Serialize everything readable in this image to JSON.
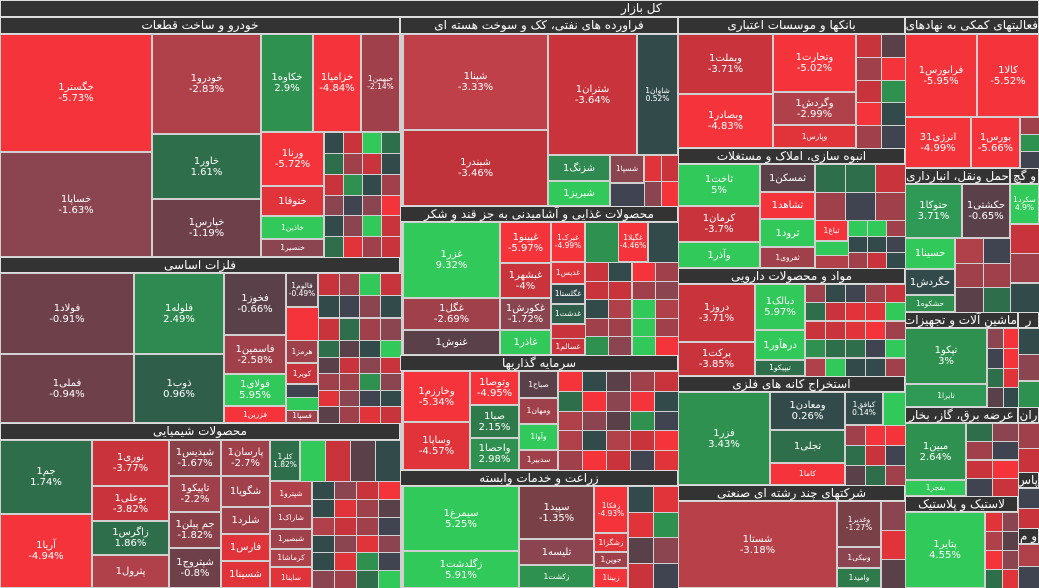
{
  "title": "کل بازار",
  "colors": {
    "bright_red": "#f5333a",
    "red": "#c8333c",
    "mid_red": "#b0404a",
    "maroon": "#8a4550",
    "plum": "#6e404a",
    "dark_plum": "#5a4048",
    "slate": "#3f4450",
    "teal": "#334a4a",
    "dark_green": "#2f6e4a",
    "green": "#2e9150",
    "bright_green": "#30c95a",
    "header": "#333333"
  },
  "sections": [
    {
      "title": "خودرو و ساخت قطعات",
      "tiles": [
        {
          "symbol": "خگستر1",
          "change": "-5.73%",
          "color": "#f5333a"
        },
        {
          "symbol": "خساپا1",
          "change": "-1.63%",
          "color": "#8a4550"
        },
        {
          "symbol": "خودرو1",
          "change": "-2.83%",
          "color": "#b0404a"
        },
        {
          "symbol": "خاور1",
          "change": "1.61%",
          "color": "#2f6e4a"
        },
        {
          "symbol": "خپارس1",
          "change": "-1.19%",
          "color": "#6e404a"
        },
        {
          "symbol": "خکاوه1",
          "change": "2.9%",
          "color": "#2e9150"
        },
        {
          "symbol": "خزامیا1",
          "change": "-4.84%",
          "color": "#f5333a"
        },
        {
          "symbol": "خبهمن1",
          "change": "-2.14%",
          "color": "#a0404a"
        },
        {
          "symbol": "ورنا1",
          "change": "-5.72%",
          "color": "#f5333a"
        },
        {
          "symbol": "ختوقا1",
          "change": "",
          "color": "#e0333a"
        },
        {
          "symbol": "خاذین1",
          "change": "",
          "color": "#30c95a"
        },
        {
          "symbol": "خنصیر1",
          "change": "",
          "color": "#8a4550"
        }
      ]
    },
    {
      "title": "فلزات اساسی",
      "tiles": [
        {
          "symbol": "فولاد1",
          "change": "-0.91%",
          "color": "#6e404a"
        },
        {
          "symbol": "فملی1",
          "change": "-0.94%",
          "color": "#6e404a"
        },
        {
          "symbol": "فلوله1",
          "change": "2.49%",
          "color": "#2e8a50"
        },
        {
          "symbol": "ذوب1",
          "change": "0.96%",
          "color": "#2f5e4a"
        },
        {
          "symbol": "فخوز1",
          "change": "-0.66%",
          "color": "#5a4048"
        },
        {
          "symbol": "فاسمین1",
          "change": "-2.58%",
          "color": "#a0404a"
        },
        {
          "symbol": "فولای1",
          "change": "5.95%",
          "color": "#30c95a"
        },
        {
          "symbol": "فزرین1",
          "change": "",
          "color": "#f5333a"
        },
        {
          "symbol": "فالوم1",
          "change": "-0.49%",
          "color": "#5a4048"
        },
        {
          "symbol": "هرمز1",
          "change": "",
          "color": "#a0404a"
        },
        {
          "symbol": "کویر1",
          "change": "",
          "color": "#c8333c"
        },
        {
          "symbol": "فسپا1",
          "change": "",
          "color": "#a0404a"
        }
      ]
    },
    {
      "title": "محصولات شیمیایی",
      "tiles": [
        {
          "symbol": "جم1",
          "change": "1.74%",
          "color": "#2f6e4a"
        },
        {
          "symbol": "آریا1",
          "change": "-4.94%",
          "color": "#f5333a"
        },
        {
          "symbol": "نوری1",
          "change": "-3.77%",
          "color": "#c8333c"
        },
        {
          "symbol": "بوعلی1",
          "change": "-3.82%",
          "color": "#c8333c"
        },
        {
          "symbol": "زاگرس1",
          "change": "1.86%",
          "color": "#2f6e4a"
        },
        {
          "symbol": "پترول1",
          "change": "",
          "color": "#b0404a"
        },
        {
          "symbol": "شپدیس1",
          "change": "-1.67%",
          "color": "#8a4048"
        },
        {
          "symbol": "تاپیکو1",
          "change": "-2.2%",
          "color": "#a0404a"
        },
        {
          "symbol": "جم پیلن1",
          "change": "-1.82%",
          "color": "#8a4048"
        },
        {
          "symbol": "شپتروج1",
          "change": "-0.8%",
          "color": "#6e404a"
        },
        {
          "symbol": "پارسان1",
          "change": "-2.7%",
          "color": "#a0404a"
        },
        {
          "symbol": "شگویا1",
          "change": "",
          "color": "#a0404a"
        },
        {
          "symbol": "شلرد1",
          "change": "",
          "color": "#a0404a"
        },
        {
          "symbol": "فارس1",
          "change": "",
          "color": "#e0333a"
        },
        {
          "symbol": "شسینا1",
          "change": "",
          "color": "#e0333a"
        },
        {
          "symbol": "کلر1",
          "change": "1.82%",
          "color": "#2f6e4a"
        },
        {
          "symbol": "شپترو1",
          "change": "",
          "color": "#b0404a"
        },
        {
          "symbol": "شاراک1",
          "change": "",
          "color": "#a0404a"
        },
        {
          "symbol": "شبصیر1",
          "change": "",
          "color": "#a0404a"
        },
        {
          "symbol": "کرماشا1",
          "change": "",
          "color": "#b0404a"
        },
        {
          "symbol": "ساینا1",
          "change": "",
          "color": "#e0333a"
        }
      ]
    },
    {
      "title": "فراورده های نفتی، کک و سوخت هسته ای",
      "tiles": [
        {
          "symbol": "شپنا1",
          "change": "-3.33%",
          "color": "#c0404a"
        },
        {
          "symbol": "شبندر1",
          "change": "-3.46%",
          "color": "#c0333a"
        },
        {
          "symbol": "شتران1",
          "change": "-3.64%",
          "color": "#c8333c"
        },
        {
          "symbol": "شاوان1",
          "change": "0.52%",
          "color": "#334a4a"
        },
        {
          "symbol": "شزنگ1",
          "change": "",
          "color": "#2e8a50"
        },
        {
          "symbol": "شبریز1",
          "change": "",
          "color": "#30c95a"
        },
        {
          "symbol": "شسپا1",
          "change": "",
          "color": "#8a4550"
        }
      ]
    },
    {
      "title": "محصولات غذایی و آشامیدنی به جز قند و شکر",
      "tiles": [
        {
          "symbol": "غزر1",
          "change": "9.32%",
          "color": "#30c95a"
        },
        {
          "symbol": "غگل1",
          "change": "-2.69%",
          "color": "#a0404a"
        },
        {
          "symbol": "غنوش1",
          "change": "",
          "color": "#5a4048"
        },
        {
          "symbol": "غپینو1",
          "change": "-5.97%",
          "color": "#f5333a"
        },
        {
          "symbol": "غبشهر1",
          "change": "-4%",
          "color": "#c8333c"
        },
        {
          "symbol": "غکورش1",
          "change": "-1.72%",
          "color": "#8a4550"
        },
        {
          "symbol": "غاذر1",
          "change": "",
          "color": "#30c95a"
        },
        {
          "symbol": "غبرک1",
          "change": "-4.99%",
          "color": "#f5333a"
        },
        {
          "symbol": "غدیس1",
          "change": "",
          "color": "#e0333a"
        },
        {
          "symbol": "غگلستا1",
          "change": "",
          "color": "#334a4a"
        },
        {
          "symbol": "غدشت1",
          "change": "",
          "color": "#2f5e4a"
        },
        {
          "symbol": "غسالم1",
          "change": "",
          "color": "#c8333c"
        },
        {
          "symbol": "غگیلا1",
          "change": "-4.46%",
          "color": "#f5333a"
        }
      ]
    },
    {
      "title": "سرمایه گذاریها",
      "tiles": [
        {
          "symbol": "وخارزم1",
          "change": "-5.34%",
          "color": "#f5333a"
        },
        {
          "symbol": "وساپا1",
          "change": "-4.57%",
          "color": "#e0333a"
        },
        {
          "symbol": "وتوصا1",
          "change": "-4.95%",
          "color": "#f5333a"
        },
        {
          "symbol": "صبا1",
          "change": "2.15%",
          "color": "#2f7a4a"
        },
        {
          "symbol": "واحصا1",
          "change": "2.98%",
          "color": "#2e9150"
        },
        {
          "symbol": "صباح1",
          "change": "",
          "color": "#5a4048"
        },
        {
          "symbol": "ومهان1",
          "change": "",
          "color": "#a0404a"
        },
        {
          "symbol": "وآوا1",
          "change": "",
          "color": "#30c95a"
        },
        {
          "symbol": "سدبیر1",
          "change": "",
          "color": "#a0404a"
        }
      ]
    },
    {
      "title": "زراعت و خدمات وابسته",
      "tiles": [
        {
          "symbol": "سیمرغ1",
          "change": "5.25%",
          "color": "#30c95a"
        },
        {
          "symbol": "زگلدشت1",
          "change": "5.91%",
          "color": "#30c95a"
        },
        {
          "symbol": "سپید1",
          "change": "-1.35%",
          "color": "#7a4048"
        },
        {
          "symbol": "تلیسه1",
          "change": "",
          "color": "#8a4550"
        },
        {
          "symbol": "زکشت1",
          "change": "",
          "color": "#2e9150"
        },
        {
          "symbol": "زفکا1",
          "change": "-4.93%",
          "color": "#f5333a"
        },
        {
          "symbol": "زشگزا1",
          "change": "",
          "color": "#e0333a"
        },
        {
          "symbol": "جوین1",
          "change": "",
          "color": "#a0404a"
        },
        {
          "symbol": "زبینا1",
          "change": "",
          "color": "#f5333a"
        }
      ]
    },
    {
      "title": "بانکها و موسسات اعتباری",
      "tiles": [
        {
          "symbol": "وبملت1",
          "change": "-3.71%",
          "color": "#c8333c"
        },
        {
          "symbol": "وبصادر1",
          "change": "-4.83%",
          "color": "#f5333a"
        },
        {
          "symbol": "وتجارت1",
          "change": "-5.02%",
          "color": "#f5333a"
        },
        {
          "symbol": "وگردش1",
          "change": "-2.99%",
          "color": "#b0404a"
        },
        {
          "symbol": "وپارس1",
          "change": "",
          "color": "#e0333a"
        }
      ]
    },
    {
      "title": "انبوه سازی، املاک و مستغلات",
      "tiles": [
        {
          "symbol": "ثاخت1",
          "change": "5%",
          "color": "#30c95a"
        },
        {
          "symbol": "کرمان1",
          "change": "-3.7%",
          "color": "#c8333c"
        },
        {
          "symbol": "وآذر1",
          "change": "",
          "color": "#30c95a"
        },
        {
          "symbol": "ثمسکن1",
          "change": "",
          "color": "#5a4048"
        },
        {
          "symbol": "ثشاهد1",
          "change": "",
          "color": "#f5333a"
        },
        {
          "symbol": "ثرود1",
          "change": "",
          "color": "#30c95a"
        },
        {
          "symbol": "ثفروی1",
          "change": "",
          "color": "#a0404a"
        },
        {
          "symbol": "ثباغ1",
          "change": "",
          "color": "#f5333a"
        }
      ]
    },
    {
      "title": "مواد و محصولات دارویی",
      "tiles": [
        {
          "symbol": "دروز1",
          "change": "-3.71%",
          "color": "#c8333c"
        },
        {
          "symbol": "برکت1",
          "change": "-3.85%",
          "color": "#c8333c"
        },
        {
          "symbol": "دبالک1",
          "change": "5.97%",
          "color": "#30c95a"
        },
        {
          "symbol": "درهآور1",
          "change": "",
          "color": "#30c95a"
        },
        {
          "symbol": "تیپیکو1",
          "change": "",
          "color": "#2f6e4a"
        }
      ]
    },
    {
      "title": "استخراج کانه های فلزی",
      "tiles": [
        {
          "symbol": "فزر1",
          "change": "3.43%",
          "color": "#2e9150"
        },
        {
          "symbol": "ومعادن1",
          "change": "0.26%",
          "color": "#334a4a"
        },
        {
          "symbol": "تجلی1",
          "change": "",
          "color": "#2f6e4a"
        },
        {
          "symbol": "کاما1",
          "change": "",
          "color": "#f5333a"
        },
        {
          "symbol": "کبافق1",
          "change": "0.14%",
          "color": "#334a4a"
        }
      ]
    },
    {
      "title": "شرکتهای چند رشته ای صنعتی",
      "tiles": [
        {
          "symbol": "شستا1",
          "change": "-3.18%",
          "color": "#b84048"
        },
        {
          "symbol": "وغدیر1",
          "change": "-1.27%",
          "color": "#7a4048"
        },
        {
          "symbol": "ونیکی1",
          "change": "",
          "color": "#8a4550"
        },
        {
          "symbol": "وامید1",
          "change": "",
          "color": "#2f7a4a"
        }
      ]
    },
    {
      "title": "فعالیتهای کمکی به نهادهای",
      "tiles": [
        {
          "symbol": "فرابورس1",
          "change": "-5.95%",
          "color": "#f5333a"
        },
        {
          "symbol": "کالا1",
          "change": "-5.52%",
          "color": "#f5333a"
        },
        {
          "symbol": "انرژی31",
          "change": "-4.99%",
          "color": "#f5333a"
        },
        {
          "symbol": "بورس1",
          "change": "-5.66%",
          "color": "#f5333a"
        }
      ]
    },
    {
      "title": "حمل ونقل، انبارداری",
      "tiles": [
        {
          "symbol": "حتوکا1",
          "change": "3.71%",
          "color": "#2e9a55"
        },
        {
          "symbol": "حکشتی1",
          "change": "-0.65%",
          "color": "#5a4048"
        },
        {
          "symbol": "حسینا1",
          "change": "",
          "color": "#30c95a"
        },
        {
          "symbol": "حگردش1",
          "change": "",
          "color": "#334a4a"
        },
        {
          "symbol": "حشکوه1",
          "change": "",
          "color": "#2e9150"
        }
      ]
    },
    {
      "title": "و گچ",
      "tiles": [
        {
          "symbol": "سکرد1",
          "change": "4.9%",
          "color": "#30c95a"
        }
      ]
    },
    {
      "title": "ماشین آلات و تجهیزات",
      "tiles": [
        {
          "symbol": "تپکو1",
          "change": "3%",
          "color": "#2e9150"
        },
        {
          "symbol": "تایرا1",
          "change": "",
          "color": "#2e9a55"
        }
      ]
    },
    {
      "title": "عرضه برق، گاز، بخار",
      "tiles": [
        {
          "symbol": "مبین1",
          "change": "2.64%",
          "color": "#2e9150"
        },
        {
          "symbol": "بفجر1",
          "change": "",
          "color": "#30c95a"
        }
      ]
    },
    {
      "title": "لاستیک و پلاستیک",
      "tiles": [
        {
          "symbol": "پتایر1",
          "change": "4.55%",
          "color": "#30c95a"
        }
      ]
    },
    {
      "title": "ر",
      "tiles": []
    },
    {
      "title": "ران",
      "tiles": []
    },
    {
      "title": "پاس",
      "tiles": []
    },
    {
      "title": "و م",
      "tiles": []
    }
  ]
}
